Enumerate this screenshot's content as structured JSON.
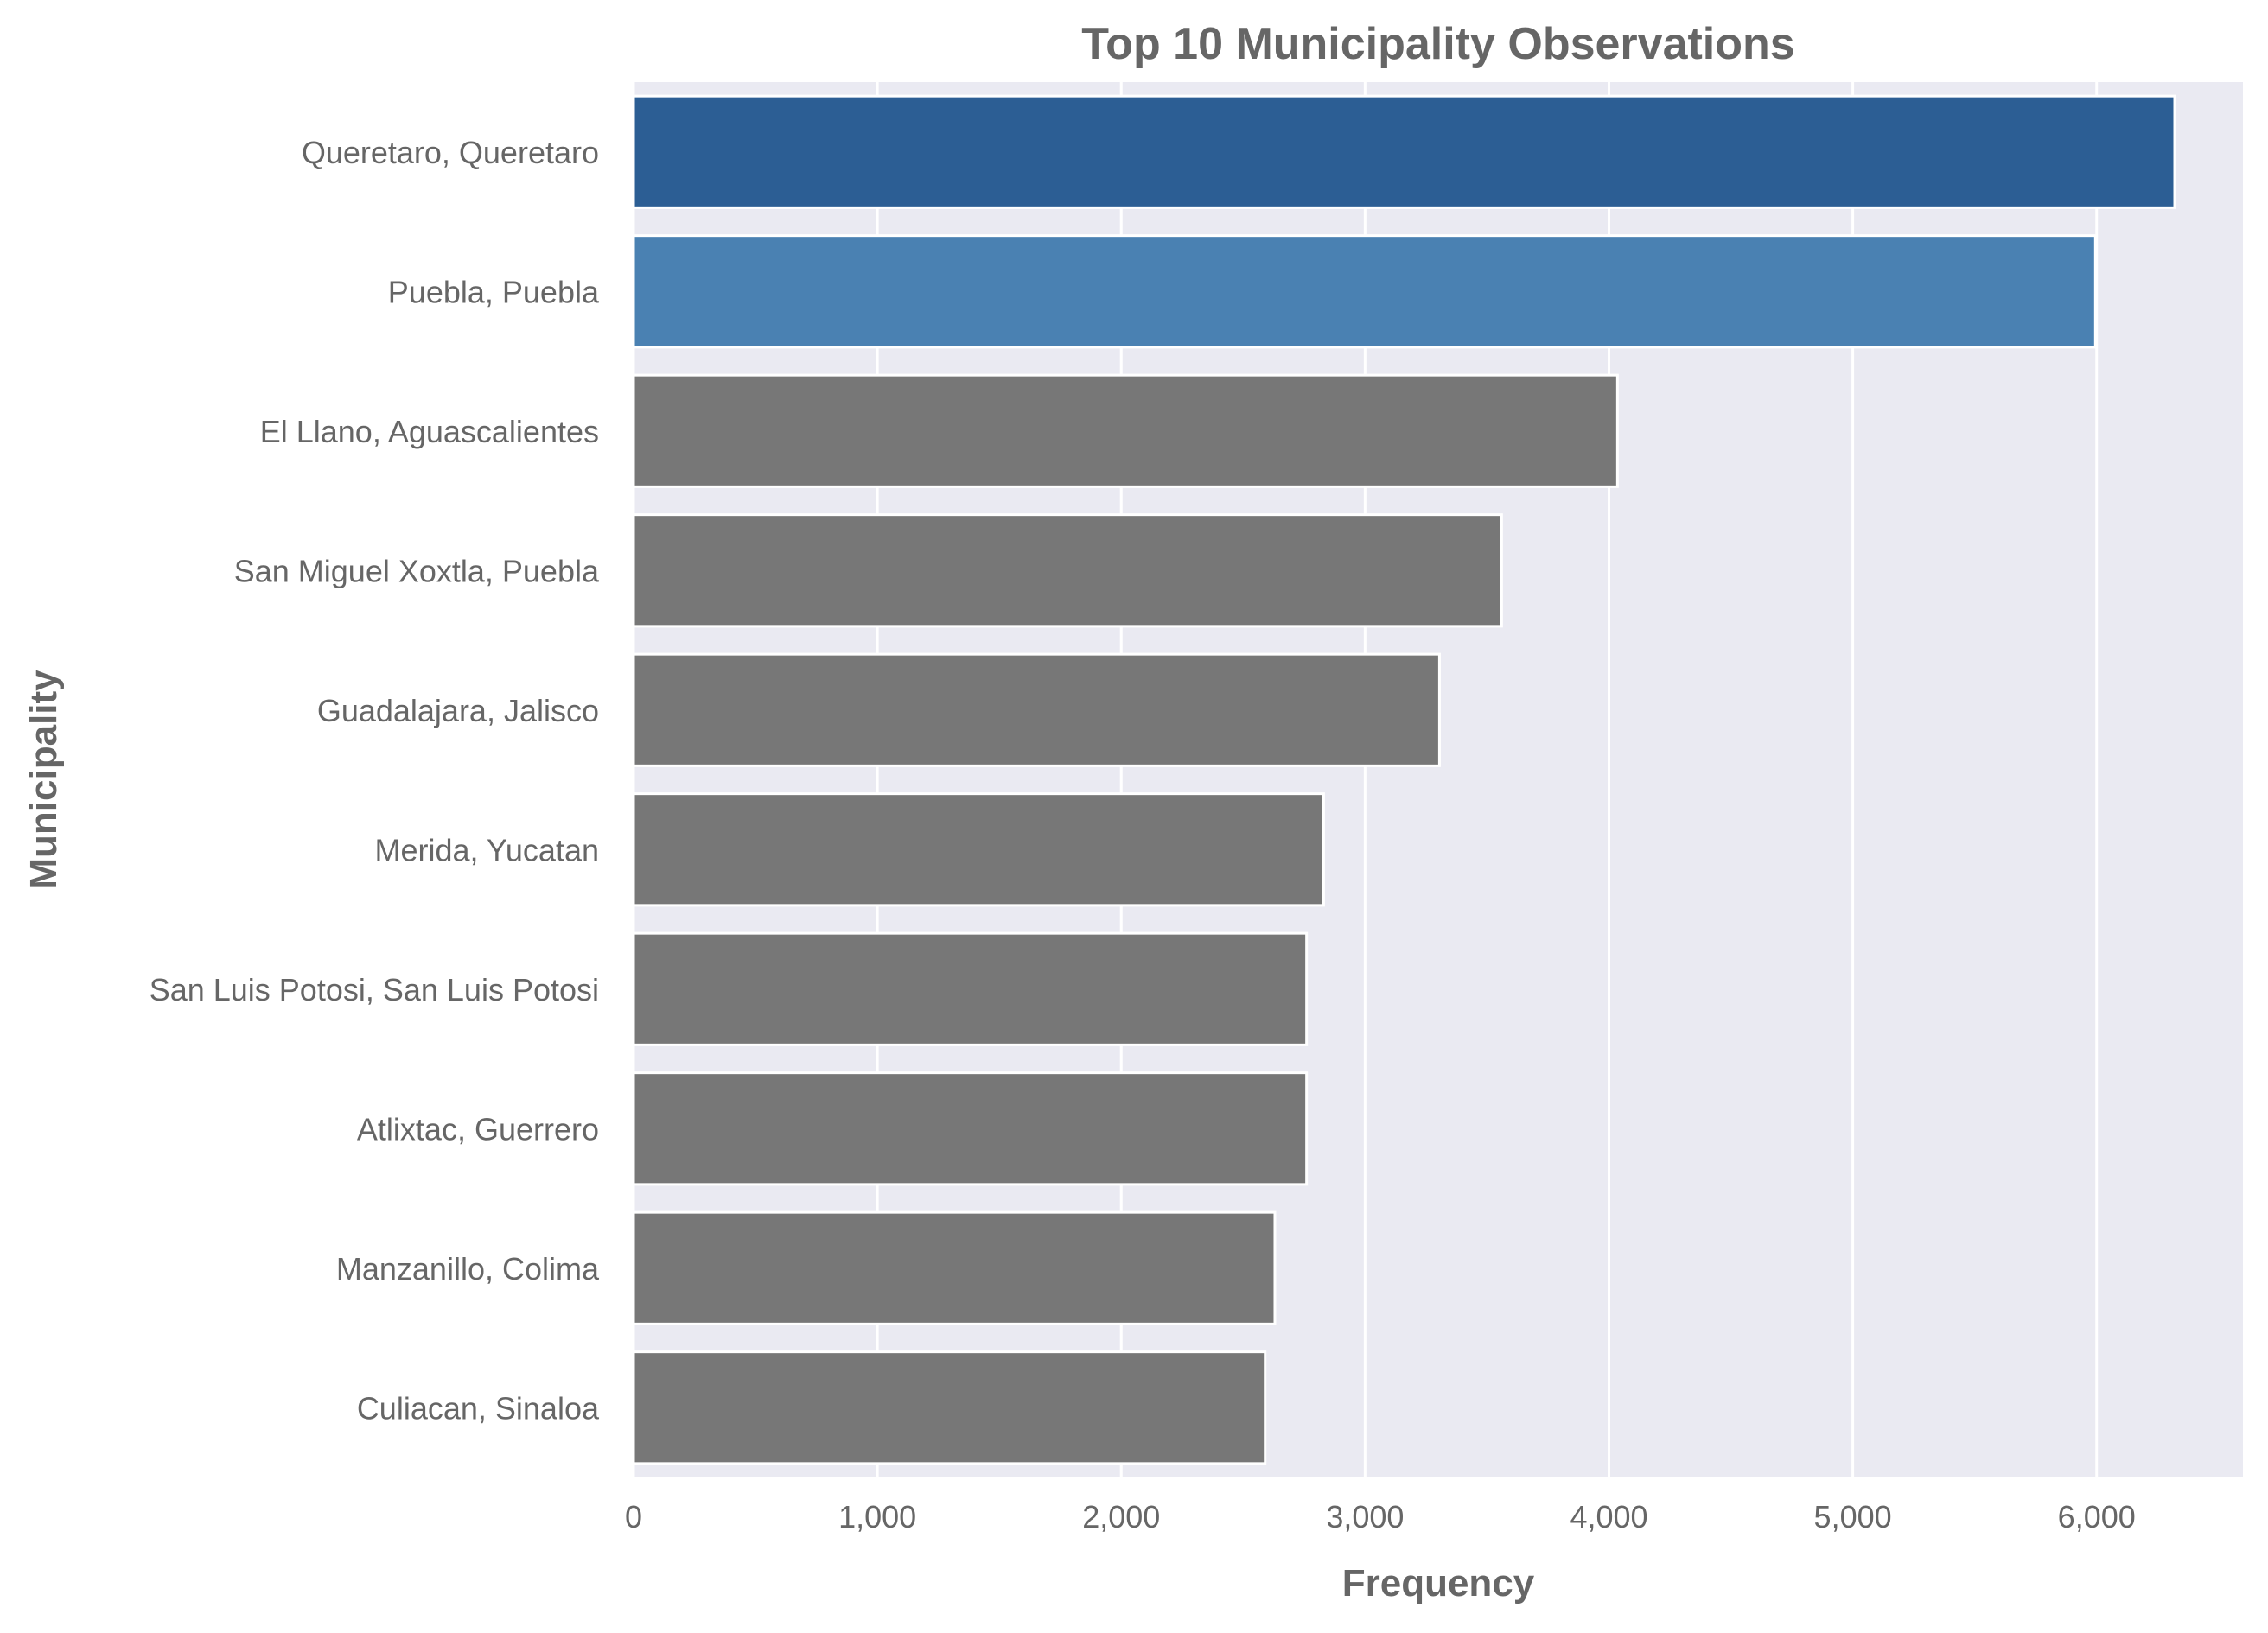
{
  "chart_data": {
    "type": "bar",
    "orientation": "horizontal",
    "title": "Top 10 Municipality Observations",
    "xlabel": "Frequency",
    "ylabel": "Municipality",
    "xlim": [
      0,
      6600
    ],
    "xticks": [
      0,
      1000,
      2000,
      3000,
      4000,
      5000,
      6000
    ],
    "xtick_labels": [
      "0",
      "1,000",
      "2,000",
      "3,000",
      "4,000",
      "5,000",
      "6,000"
    ],
    "grid": true,
    "categories": [
      "Queretaro, Queretaro",
      "Puebla, Puebla",
      "El Llano, Aguascalientes",
      "San Miguel Xoxtla, Puebla",
      "Guadalajara, Jalisco",
      "Merida, Yucatan",
      "San Luis Potosi, San Luis Potosi",
      "Atlixtac, Guerrero",
      "Manzanillo, Colima",
      "Culiacan, Sinaloa"
    ],
    "values": [
      6320,
      5995,
      4035,
      3560,
      3305,
      2830,
      2760,
      2760,
      2630,
      2590
    ],
    "colors": [
      "#2c5e94",
      "#4a81b2",
      "#777777",
      "#777777",
      "#777777",
      "#777777",
      "#777777",
      "#777777",
      "#777777",
      "#777777"
    ],
    "background": "#eaeaf2",
    "grid_color": "#ffffff"
  }
}
